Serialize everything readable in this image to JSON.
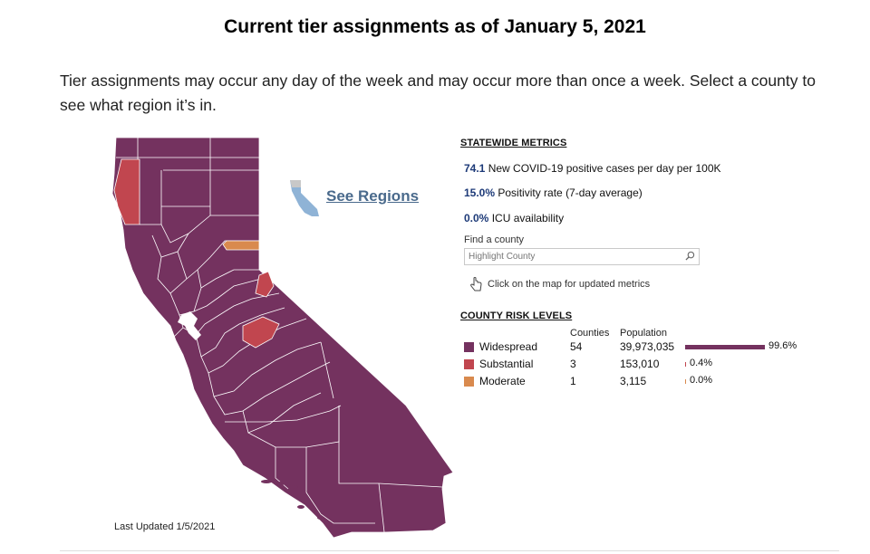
{
  "page": {
    "title": "Current tier assignments as of January 5, 2021",
    "intro": "Tier assignments may occur any day of the week and may occur more than once a week. Select a county to see what region it’s in."
  },
  "map": {
    "last_updated": "Last Updated 1/5/2021",
    "see_regions": "See Regions"
  },
  "statewide": {
    "heading": "STATEWIDE METRICS",
    "metrics": [
      {
        "value": "74.1",
        "label": "New COVID-19 positive cases per day per 100K"
      },
      {
        "value": "15.0%",
        "label": "Positivity rate (7-day average)"
      },
      {
        "value": "0.0%",
        "label": "ICU availability"
      }
    ]
  },
  "search": {
    "label": "Find a county",
    "placeholder": "Highlight County",
    "hint": "Click on the map for updated metrics"
  },
  "risk": {
    "heading": "COUNTY RISK LEVELS",
    "col_counties": "Counties",
    "col_population": "Population",
    "levels": [
      {
        "name": "Widespread",
        "counties": "54",
        "population": "39,973,035",
        "pct": "99.6%",
        "share": 0.996,
        "color": "#74325f"
      },
      {
        "name": "Substantial",
        "counties": "3",
        "population": "153,010",
        "pct": "0.4%",
        "share": 0.004,
        "color": "#c1464f"
      },
      {
        "name": "Moderate",
        "counties": "1",
        "population": "3,115",
        "pct": "0.0%",
        "share": 0.0,
        "color": "#d98a4e"
      }
    ]
  },
  "colors": {
    "widespread": "#74325f",
    "substantial": "#c1464f",
    "moderate": "#d98a4e",
    "metric_value": "#1d3a78",
    "link": "#4a6a8c",
    "inset_region": "#8fb3d6"
  }
}
